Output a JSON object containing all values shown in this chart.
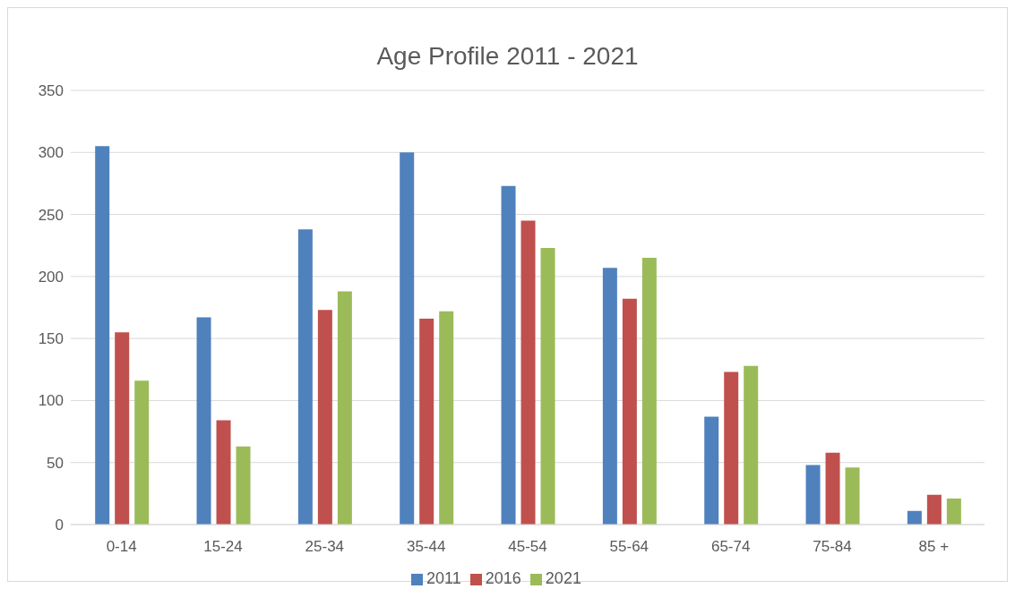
{
  "chart_data": {
    "type": "bar",
    "title": "Age Profile 2011 - 2021",
    "categories": [
      "0-14",
      "15-24",
      "25-34",
      "35-44",
      "45-54",
      "55-64",
      "65-74",
      "75-84",
      "85 +"
    ],
    "series": [
      {
        "name": "2011",
        "color": "#4f81bd",
        "values": [
          305,
          167,
          238,
          300,
          273,
          207,
          87,
          48,
          11
        ]
      },
      {
        "name": "2016",
        "color": "#c0504d",
        "values": [
          155,
          84,
          173,
          166,
          245,
          182,
          123,
          58,
          24
        ]
      },
      {
        "name": "2021",
        "color": "#9bbb59",
        "values": [
          116,
          63,
          188,
          172,
          223,
          215,
          128,
          46,
          21
        ]
      }
    ],
    "ylim": [
      0,
      350
    ],
    "yticks": [
      0,
      50,
      100,
      150,
      200,
      250,
      300,
      350
    ],
    "grid": "y",
    "legend": "bottom"
  }
}
